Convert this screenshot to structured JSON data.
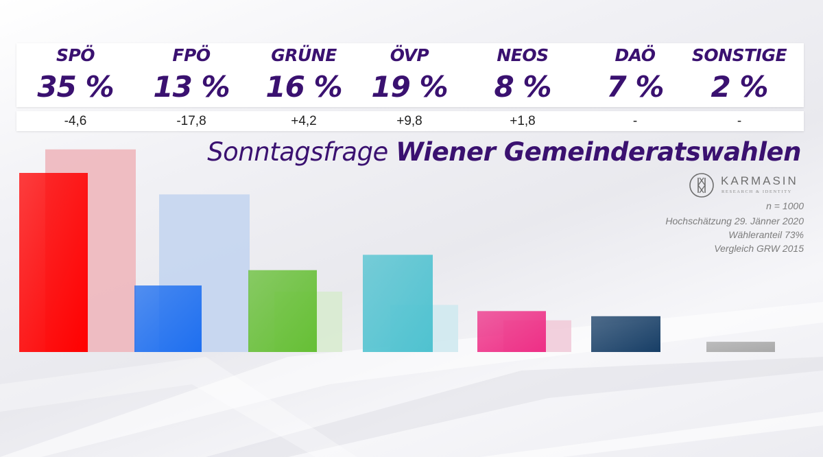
{
  "title_light": "Sonntagsfrage",
  "title_bold": "Wiener Gemeinderatswahlen",
  "logo": {
    "name": "KARMASIN",
    "tagline": "RESEARCH & IDENTITY"
  },
  "notes": {
    "sample": "n = 1000",
    "projection": "Hochschätzung 29. Jänner 2020",
    "turnout": "Wähleranteil 73%",
    "comparison": "Vergleich GRW 2015"
  },
  "parties": [
    {
      "name": "SPÖ",
      "pct_label": "35 %",
      "change_label": "-4,6"
    },
    {
      "name": "FPÖ",
      "pct_label": "13 %",
      "change_label": "-17,8"
    },
    {
      "name": "GRÜNE",
      "pct_label": "16 %",
      "change_label": "+4,2"
    },
    {
      "name": "ÖVP",
      "pct_label": "19 %",
      "change_label": "+9,8"
    },
    {
      "name": "NEOS",
      "pct_label": "8 %",
      "change_label": "+1,8"
    },
    {
      "name": "DAÖ",
      "pct_label": "7 %",
      "change_label": "-"
    },
    {
      "name": "SONSTIGE",
      "pct_label": "2 %",
      "change_label": "-"
    }
  ],
  "chart_data": {
    "type": "bar",
    "categories": [
      "SPÖ",
      "FPÖ",
      "GRÜNE",
      "ÖVP",
      "NEOS",
      "DAÖ",
      "SONSTIGE"
    ],
    "series": [
      {
        "values": [
          35,
          13,
          16,
          19,
          8,
          7,
          2
        ]
      },
      {
        "values": [
          39.6,
          30.8,
          11.8,
          9.2,
          6.2,
          null,
          null
        ]
      }
    ],
    "colors": {
      "current": [
        "#ff0000",
        "#1e6ff0",
        "#66bf35",
        "#4fc2d0",
        "#ee2f86",
        "#173e66",
        "#a9a9a9"
      ],
      "previous": [
        "#eeb7bd",
        "#c4d5ef",
        "#d8ebcf",
        "#cfe9ef",
        "#f1cbd9",
        null,
        null
      ]
    },
    "ylim": [
      0,
      40
    ],
    "grid": false,
    "legend": "none"
  }
}
